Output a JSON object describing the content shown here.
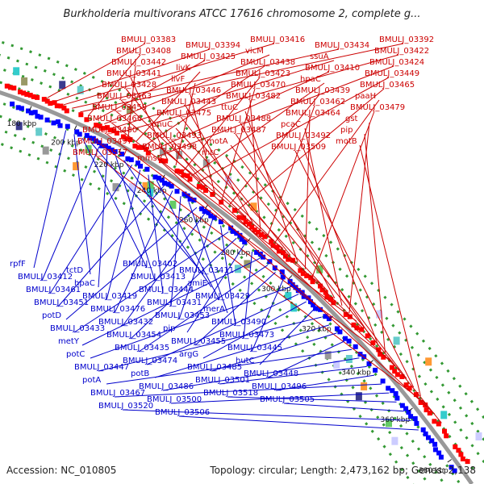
{
  "title": "Burkholderia multivorans ATCC 17616 chromosome 2, complete g...",
  "footer": {
    "accession": "Accession: NC_010805",
    "summary": "Topology: circular; Length: 2,473,162 bp; Genes: 2,138"
  },
  "colors": {
    "forward": "#ff0000",
    "reverse": "#0000ff",
    "forward_label": "#cc0000",
    "reverse_label": "#0000cc",
    "backbone": "#999999",
    "frame": "#339933"
  },
  "ticks": [
    "180 kbp",
    "200 kbp",
    "220 kbp",
    "240 kbp",
    "260 kbp",
    "280 kbp",
    "300 kbp",
    "320 kbp",
    "340 kbp",
    "360 kbp",
    "380 kbp"
  ],
  "forward_labels": [
    "BMULJ_03383",
    "BMULJ_03394",
    "BMULJ_03416",
    "BMULJ_03434",
    "BMULJ_03392",
    "BMULJ_03408",
    "BMULJ_03425",
    "vicM",
    "ssuA",
    "BMULJ_03422",
    "BMULJ_03442",
    "livK",
    "BMULJ_03438",
    "BMULJ_03410",
    "BMULJ_03424",
    "BMULJ_03441",
    "livF",
    "BMULJ_03423",
    "hpaC",
    "BMULJ_03449",
    "BMULJ_03428",
    "BMULJ_03446",
    "BMULJ_03470",
    "BMULJ_03439",
    "BMULJ_03465",
    "BMULJ_03463",
    "BMULJ_03443",
    "BMULJ_03482",
    "BMULJ_03462",
    "paaH",
    "BMULJ_03459",
    "BMULJ_03475",
    "ttuC",
    "BMULJ_03464",
    "BMULJ_03479",
    "BMULJ_03466",
    "pnuC",
    "BMULJ_03488",
    "pcaC",
    "gst",
    "BMULJ_03480",
    "BMULJ_03493",
    "BMULJ_03487",
    "BMULJ_03492",
    "pip",
    "BMULJ_03497",
    "BMULJ_03498",
    "motA",
    "BMULJ_03509",
    "motB",
    "BMULJ_03517",
    "mmsB",
    "rhtC"
  ],
  "reverse_labels": [
    "rpfF",
    "tctD",
    "BMULJ_03402",
    "BMULJ_03411",
    "BMULJ_03412",
    "hpaC",
    "BMULJ_03413",
    "amiE",
    "BMULJ_03461",
    "BMULJ_03419",
    "BMULJ_03444",
    "BMULJ_03429",
    "BMULJ_03451",
    "BMULJ_03476",
    "BMULJ_03431",
    "merA",
    "potD",
    "BMULJ_03432",
    "BMULJ_03453",
    "BMULJ_03490",
    "BMULJ_03433",
    "BMULJ_03454",
    "pip",
    "BMULJ_03473",
    "metY",
    "BMULJ_03435",
    "BMULJ_03455",
    "BMULJ_03445",
    "potC",
    "BMULJ_03474",
    "argG",
    "hutC",
    "BMULJ_03447",
    "potB",
    "BMULJ_03485",
    "BMULJ_03448",
    "potA",
    "BMULJ_03486",
    "BMULJ_03501",
    "BMULJ_03496",
    "BMULJ_03467",
    "BMULJ_03500",
    "BMULJ_03518",
    "BMULJ_03505",
    "BMULJ_03520",
    "BMULJ_03506"
  ]
}
